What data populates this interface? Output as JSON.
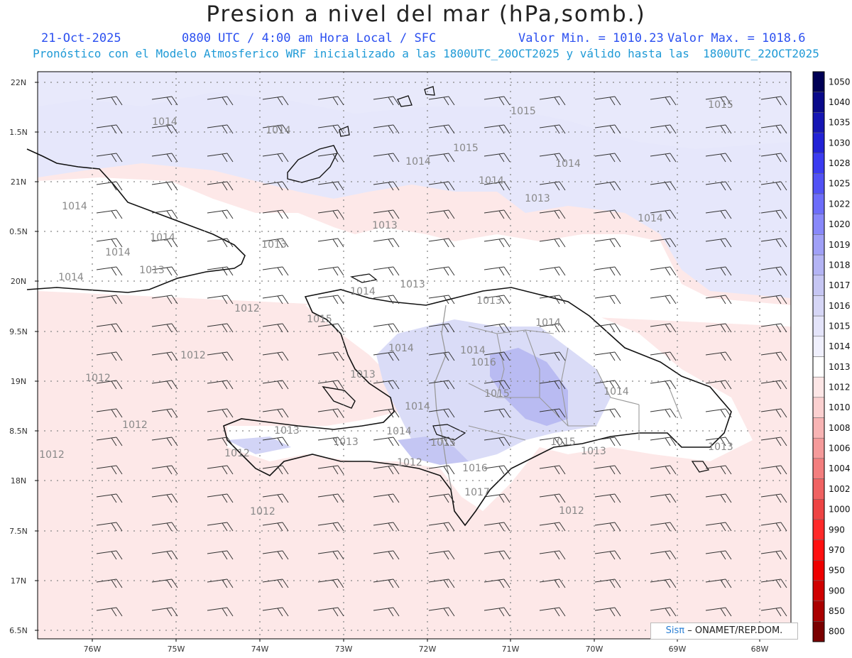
{
  "title": "Presion a nivel del mar (hPa,somb.)",
  "info": {
    "date": "21-Oct-2025",
    "time": "0800 UTC / 4:00 am Hora Local / SFC",
    "min": "Valor Min. = 1010.23",
    "max": "Valor Max. = 1018.6",
    "model": "Pronóstico con el Modelo Atmosferico WRF inicializado a las 1800UTC_20OCT2025 y válido hasta las  1800UTC_22OCT2025"
  },
  "axes": {
    "lat_labels": [
      "22N",
      "1.5N",
      "21N",
      "0.5N",
      "20N",
      "9.5N",
      "19N",
      "8.5N",
      "18N",
      "7.5N",
      "17N",
      "6.5N"
    ],
    "lon_labels": [
      "76W",
      "75W",
      "74W",
      "73W",
      "72W",
      "71W",
      "70W",
      "69W",
      "68W"
    ]
  },
  "colorbar": {
    "levels": [
      "1050",
      "1040",
      "1035",
      "1030",
      "1028",
      "1025",
      "1022",
      "1020",
      "1019",
      "1018",
      "1017",
      "1016",
      "1015",
      "1014",
      "1013",
      "1012",
      "1010",
      "1008",
      "1006",
      "1004",
      "1002",
      "1000",
      "990",
      "970",
      "950",
      "900",
      "850",
      "800"
    ],
    "colors": [
      "#000055",
      "#0a0a8a",
      "#1616b4",
      "#2222d6",
      "#3b3bf0",
      "#5252f5",
      "#6d6dfa",
      "#8888fa",
      "#a0a0f7",
      "#b4b4f4",
      "#c6c6f3",
      "#d6d6f6",
      "#e4e4fa",
      "#f0f0fd",
      "#ffffff",
      "#fde6e6",
      "#fbd0d0",
      "#f8b4b4",
      "#f59a9a",
      "#f37e7e",
      "#f06262",
      "#ee4444",
      "#ff2a2a",
      "#ff1010",
      "#ee0000",
      "#d00000",
      "#aa0000",
      "#7a0000"
    ]
  },
  "contour_labels": [
    {
      "v": "1014"
    },
    {
      "v": "1014"
    },
    {
      "v": "1015"
    },
    {
      "v": "1015"
    },
    {
      "v": "1014"
    },
    {
      "v": "1015"
    },
    {
      "v": "1014"
    },
    {
      "v": "1014"
    },
    {
      "v": "1014"
    },
    {
      "v": "1014"
    },
    {
      "v": "1013"
    },
    {
      "v": "1014"
    },
    {
      "v": "1014"
    },
    {
      "v": "1013"
    },
    {
      "v": "1013"
    },
    {
      "v": "1014"
    },
    {
      "v": "1013"
    },
    {
      "v": "1014"
    },
    {
      "v": "1012"
    },
    {
      "v": "1013"
    },
    {
      "v": "1015"
    },
    {
      "v": "1013"
    },
    {
      "v": "1014"
    },
    {
      "v": "1012"
    },
    {
      "v": "1014"
    },
    {
      "v": "1016"
    },
    {
      "v": "1012"
    },
    {
      "v": "1013"
    },
    {
      "v": "1015"
    },
    {
      "v": "1014"
    },
    {
      "v": "1014"
    },
    {
      "v": "1012"
    },
    {
      "v": "1014"
    },
    {
      "v": "1013"
    },
    {
      "v": "1015"
    },
    {
      "v": "1014"
    },
    {
      "v": "1015"
    },
    {
      "v": "1013"
    },
    {
      "v": "1013"
    },
    {
      "v": "1012"
    },
    {
      "v": "1013"
    },
    {
      "v": "1012"
    },
    {
      "v": "1016"
    },
    {
      "v": "1017"
    },
    {
      "v": "1012"
    },
    {
      "v": "1012"
    },
    {
      "v": "1012"
    }
  ],
  "credit": {
    "brand": "Sisπ",
    "text": "– ONAMET/REP.DOM."
  }
}
